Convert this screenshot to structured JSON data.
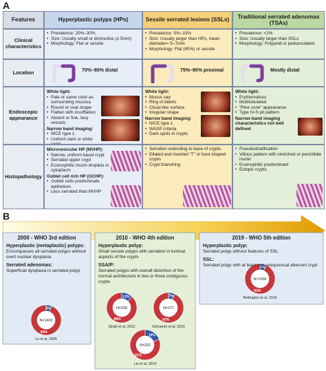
{
  "panel_a": {
    "label": "A",
    "header": [
      "Features",
      "Hyperplastic polyps (HPs)",
      "Sessile serrated lesions (SSLs)",
      "Traditional serrated adenomas (TSAs)"
    ],
    "rows": [
      {
        "feature": "Clinical characteristics",
        "cells": [
          {
            "items": [
              "Prevalence: 20%–30%",
              "Size: Usually small or diminutive (≤ 5mm)",
              "Morphology: Flat or sessile"
            ]
          },
          {
            "items": [
              "Prevalence: 5%–15%",
              "Size: Usually larger than HPs, mean diameter= 5–7mm",
              "Morphology: Flat (45%) or sessile"
            ]
          },
          {
            "items": [
              "Prevalence: <1%",
              "Size: Usually larger than SSLs",
              "Morphology: Polypoid or pedunculated"
            ]
          }
        ]
      },
      {
        "feature": "Location",
        "cells": [
          {
            "text": "70%–80% distal"
          },
          {
            "text": "75%–90% proximal"
          },
          {
            "text": "Mostly distal"
          }
        ]
      },
      {
        "feature": "Endoscopic appearance",
        "cells": [
          {
            "groups": [
              {
                "heading": "White light:",
                "items": [
                  "Pale or same color as surrounding mucosa",
                  "Round or oval shape",
                  "Flatten with insufflation",
                  "Absent or fine, lacy vessels"
                ]
              },
              {
                "heading": "Narrow band imaging:",
                "items": [
                  "NICE type 1",
                  "Uniform dark or white spots"
                ]
              }
            ]
          },
          {
            "groups": [
              {
                "heading": "White light:",
                "items": [
                  "Mucus cap",
                  "Ring of debris",
                  "Cloud-like surface",
                  "Irregular shape"
                ]
              },
              {
                "heading": "Narrow band imaging:",
                "items": [
                  "NICE type 1",
                  "WASP criteria",
                  "Dark spots in crypts"
                ]
              }
            ]
          },
          {
            "groups": [
              {
                "heading": "White light:",
                "items": [
                  "Erythematous",
                  "Multilobulated",
                  "“Pine cone” appearance",
                  "Type IV-S pit pattern"
                ]
              },
              {
                "heading": "Narrow band imaging characteristics not well defined",
                "items": []
              }
            ]
          }
        ]
      },
      {
        "feature": "Histopathology",
        "cells": [
          {
            "groups": [
              {
                "heading": "Microvesicular HP (MVHP):",
                "items": [
                  "Narrow, uniform basal crypt",
                  "Serrated upper crypt",
                  "Eosinophilic mucin droplets in cytoplasm"
                ]
              },
              {
                "heading": "Goblet cell rich HP (GCHP):",
                "items": [
                  "Goblet cells predominate epithelium",
                  "Less serrated than MVHP"
                ]
              }
            ]
          },
          {
            "items": [
              "Serration extending to base of crypts",
              "Dilated and inverted “T” or boot shaped crypts",
              "Crypt branching"
            ]
          },
          {
            "items": [
              "Pseudostratification",
              "Villous pattern with stretched or penicillate nuclei",
              "Eosinophilic predominant",
              "Ectopic crypts"
            ]
          }
        ]
      }
    ]
  },
  "panel_b": {
    "label": "B",
    "eras": [
      {
        "title": "2000 - WHO 3rd edition",
        "sections": [
          {
            "heading": "Hyperplastic (metaplastic) polyps:",
            "text": "Encompasses all serrated polyps without overt nuclear dysplasia"
          },
          {
            "heading": "Serrated adenomas:",
            "text": "Superficial dysplasia in serrated polyp"
          }
        ],
        "donuts": [
          {
            "n": "N=1402",
            "values": [
              6,
              94
            ],
            "value_labels": [
              "6%",
              "94%"
            ],
            "colors": [
              "#2f55a4",
              "#c7363c"
            ],
            "source": "Lu et al, 2009"
          }
        ]
      },
      {
        "title": "2010 - WHO 4th edition",
        "sections": [
          {
            "heading": "Hyperplastic polyp:",
            "text": "Small sessile polyps with serration in luminal aspects of the crypts"
          },
          {
            "heading": "SSA/P:",
            "text": "Serrated polyps with overall distortion of the normal architecture in two or three contiguous crypts"
          }
        ],
        "donuts": [
          {
            "n": "N=228",
            "values": [
              12,
              88
            ],
            "value_labels": [
              "12%",
              "88%"
            ],
            "colors": [
              "#2f55a4",
              "#c7363c"
            ],
            "source": "Singh et al, 2012"
          },
          {
            "n": "N=377",
            "values": [
              7,
              93
            ],
            "value_labels": [
              "7%",
              "93%"
            ],
            "colors": [
              "#2f55a4",
              "#c7363c"
            ],
            "source": "Schramm et al, 2016"
          },
          {
            "n": "N=202",
            "values": [
              19,
              81
            ],
            "value_labels": [
              "19%",
              "81%"
            ],
            "colors": [
              "#2f55a4",
              "#c7363c"
            ],
            "source": "Lin et al, 2014"
          }
        ]
      },
      {
        "title": "2019 - WHO 5th edition",
        "sections": [
          {
            "heading": "Hyperplastic polyp:",
            "text": "Serrated polyp without features of SSL"
          },
          {
            "heading": "SSL:",
            "text": "Serrated polyp with at least one unequivocal aberrant crypt"
          }
        ],
        "donuts": [
          {
            "n": "N=1006",
            "values": [
              7,
              93
            ],
            "value_labels": [
              "7%",
              "93%"
            ],
            "colors": [
              "#2f55a4",
              "#c7363c"
            ],
            "source": "Bettington et al, 2014"
          }
        ]
      }
    ]
  }
}
